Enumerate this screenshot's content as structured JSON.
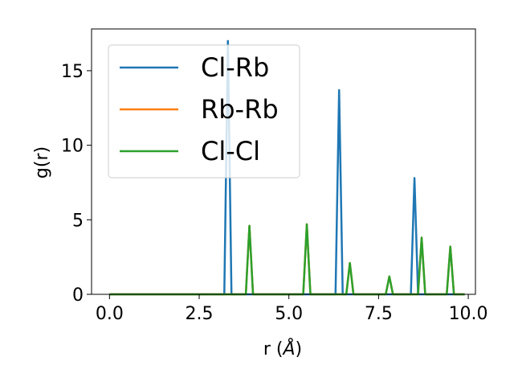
{
  "chart_data": {
    "type": "line",
    "xlabel": "r (",
    "xlabel_unit": "Å",
    "xlabel_close": ")",
    "ylabel": "g(r)",
    "xlim": [
      -0.5,
      10.2
    ],
    "ylim": [
      0,
      17.8
    ],
    "xticks": [
      0.0,
      2.5,
      5.0,
      7.5,
      10.0
    ],
    "xtick_labels": [
      "0.0",
      "2.5",
      "5.0",
      "7.5",
      "10.0"
    ],
    "yticks": [
      0,
      5,
      10,
      15
    ],
    "ytick_labels": [
      "0",
      "5",
      "10",
      "15"
    ],
    "grid": false,
    "legend_position": "upper-left",
    "series": [
      {
        "name": "Cl-Rb",
        "color": "#1f77b4",
        "x": [
          0.0,
          3.2,
          3.3,
          3.4,
          6.3,
          6.4,
          6.5,
          8.4,
          8.5,
          8.6,
          9.9
        ],
        "y": [
          0,
          0,
          17.0,
          0,
          0,
          13.7,
          0,
          0,
          7.8,
          0,
          0
        ]
      },
      {
        "name": "Rb-Rb",
        "color": "#ff7f0e",
        "x": [
          0.0,
          3.8,
          3.9,
          4.0,
          5.4,
          5.5,
          5.6,
          6.6,
          6.7,
          6.8,
          7.7,
          7.8,
          7.9,
          8.6,
          8.7,
          8.8,
          9.4,
          9.5,
          9.6,
          9.9
        ],
        "y": [
          0,
          0,
          4.6,
          0,
          0,
          4.7,
          0,
          0,
          2.1,
          0,
          0,
          1.2,
          0,
          0,
          3.8,
          0,
          0,
          3.2,
          0,
          0
        ]
      },
      {
        "name": "Cl-Cl",
        "color": "#2ca02c",
        "x": [
          0.0,
          3.8,
          3.9,
          4.0,
          5.4,
          5.5,
          5.6,
          6.6,
          6.7,
          6.8,
          7.7,
          7.8,
          7.9,
          8.6,
          8.7,
          8.8,
          9.4,
          9.5,
          9.6,
          9.9
        ],
        "y": [
          0,
          0,
          4.6,
          0,
          0,
          4.7,
          0,
          0,
          2.1,
          0,
          0,
          1.2,
          0,
          0,
          3.8,
          0,
          0,
          3.2,
          0,
          0
        ]
      }
    ]
  }
}
